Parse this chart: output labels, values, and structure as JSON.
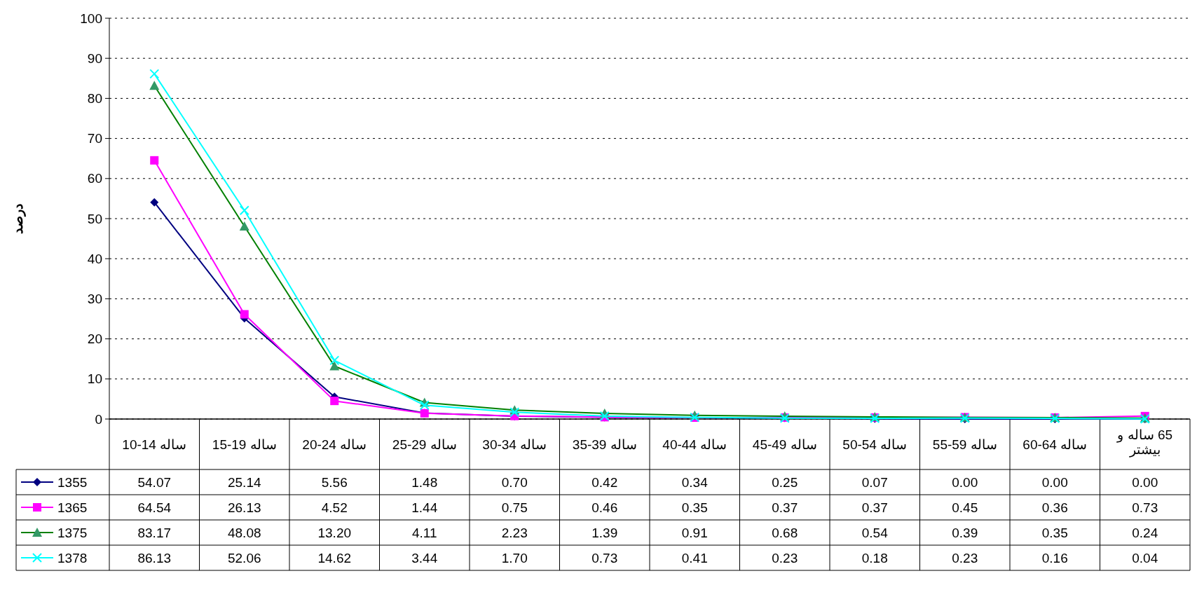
{
  "chart_data": {
    "type": "line",
    "ylabel": "درصد",
    "categories": [
      "10-14 ساله",
      "15-19 ساله",
      "20-24 ساله",
      "25-29 ساله",
      "30-34 ساله",
      "35-39 ساله",
      "40-44 ساله",
      "45-49 ساله",
      "50-54 ساله",
      "55-59 ساله",
      "60-64 ساله",
      "65 ساله و بیشتر"
    ],
    "ylim": [
      0,
      100
    ],
    "yticks": [
      0,
      10,
      20,
      30,
      40,
      50,
      60,
      70,
      80,
      90,
      100
    ],
    "grid": "y",
    "legend": "bottom left",
    "data_labels": true,
    "series": [
      {
        "name": "1355",
        "color": "#000080",
        "marker": "diamond",
        "values": [
          54.07,
          25.14,
          5.56,
          1.48,
          0.7,
          0.42,
          0.34,
          0.25,
          0.07,
          0.0,
          0.0,
          0.0
        ],
        "value_labels": [
          "54.07",
          "25.14",
          "5.56",
          "1.48",
          "0.70",
          "0.42",
          "0.34",
          "0.25",
          "0.07",
          "0.00",
          "0.00",
          "0.00"
        ]
      },
      {
        "name": "1365",
        "color": "#ff00ff",
        "marker": "square",
        "values": [
          64.54,
          26.13,
          4.52,
          1.44,
          0.75,
          0.46,
          0.35,
          0.37,
          0.37,
          0.45,
          0.36,
          0.73
        ],
        "value_labels": [
          "64.54",
          "26.13",
          "4.52",
          "1.44",
          "0.75",
          "0.46",
          "0.35",
          "0.37",
          "0.37",
          "0.45",
          "0.36",
          "0.73"
        ]
      },
      {
        "name": "1375",
        "color": "#008000",
        "marker": "triangle",
        "values": [
          83.17,
          48.08,
          13.2,
          4.11,
          2.23,
          1.39,
          0.91,
          0.68,
          0.54,
          0.39,
          0.35,
          0.24
        ],
        "value_labels": [
          "83.17",
          "48.08",
          "13.20",
          "4.11",
          "2.23",
          "1.39",
          "0.91",
          "0.68",
          "0.54",
          "0.39",
          "0.35",
          "0.24"
        ]
      },
      {
        "name": "1378",
        "color": "#00ffff",
        "marker": "cross",
        "values": [
          86.13,
          52.06,
          14.62,
          3.44,
          1.7,
          0.73,
          0.41,
          0.23,
          0.18,
          0.23,
          0.16,
          0.04
        ],
        "value_labels": [
          "86.13",
          "52.06",
          "14.62",
          "3.44",
          "1.70",
          "0.73",
          "0.41",
          "0.23",
          "0.18",
          "0.23",
          "0.16",
          "0.04"
        ]
      }
    ]
  }
}
